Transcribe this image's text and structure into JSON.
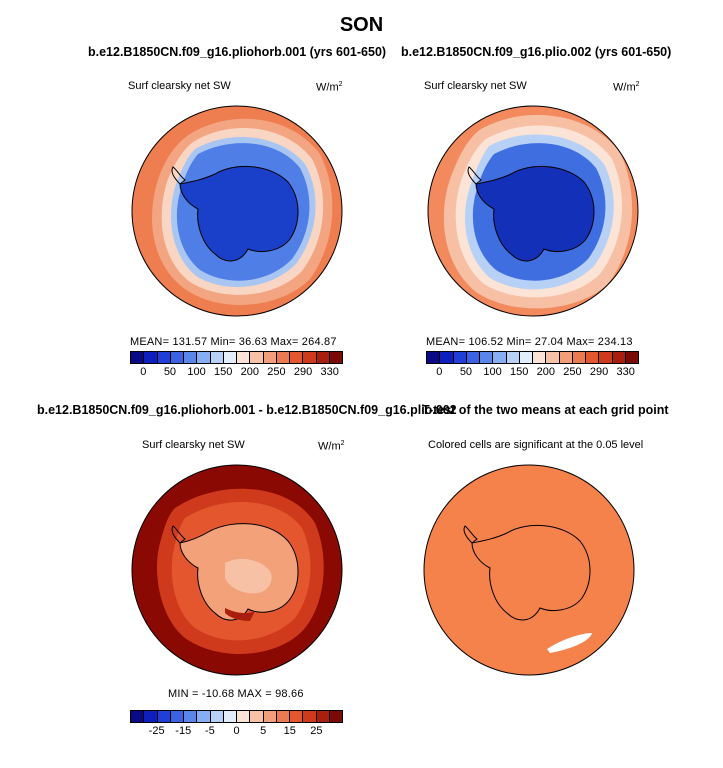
{
  "season": "SON",
  "panels": [
    {
      "title": "b.e12.B1850CN.f09_g16.pliohorb.001 (yrs 601-650)",
      "variable": "Surf clearsky net SW",
      "units": "W/m",
      "units_sup": "2",
      "stats": "MEAN= 131.57   Min=   36.63   Max= 264.87",
      "colorbar": {
        "labels": [
          "0",
          "50",
          "100",
          "150",
          "200",
          "250",
          "290",
          "330"
        ],
        "colors": [
          "#0a0a86",
          "#0d1fbf",
          "#1f3fd6",
          "#3a62e3",
          "#5a86ec",
          "#86aef2",
          "#b6d0f6",
          "#e3eefb",
          "#fbe3d6",
          "#f7c1a6",
          "#f29e78",
          "#ec7a50",
          "#e4572e",
          "#cf3a1c",
          "#aa1e0e",
          "#7a0a04"
        ]
      }
    },
    {
      "title": "b.e12.B1850CN.f09_g16.plio.002 (yrs 601-650)",
      "variable": "Surf clearsky net SW",
      "units": "W/m",
      "units_sup": "2",
      "stats": "MEAN= 106.52   Min=   27.04   Max= 234.13",
      "colorbar": {
        "labels": [
          "0",
          "50",
          "100",
          "150",
          "200",
          "250",
          "290",
          "330"
        ],
        "colors": [
          "#0a0a86",
          "#0d1fbf",
          "#1f3fd6",
          "#3a62e3",
          "#5a86ec",
          "#86aef2",
          "#b6d0f6",
          "#e3eefb",
          "#fbe3d6",
          "#f7c1a6",
          "#f29e78",
          "#ec7a50",
          "#e4572e",
          "#cf3a1c",
          "#aa1e0e",
          "#7a0a04"
        ]
      }
    },
    {
      "title": "b.e12.B1850CN.f09_g16.pliohorb.001 - b.e12.B1850CN.f09_g16.plio.002",
      "variable": "Surf clearsky net SW",
      "units": "W/m",
      "units_sup": "2",
      "stats": "MIN = -10.68  MAX =  98.66",
      "colorbar": {
        "labels": [
          "-25",
          "-15",
          "-5",
          "0",
          "5",
          "15",
          "25"
        ],
        "colors": [
          "#0a0a86",
          "#0d1fbf",
          "#1f3fd6",
          "#3a62e3",
          "#5a86ec",
          "#86aef2",
          "#b6d0f6",
          "#e3eefb",
          "#fbe3d6",
          "#f7c1a6",
          "#f29e78",
          "#ec7a50",
          "#e4572e",
          "#cf3a1c",
          "#aa1e0e",
          "#7a0a04"
        ]
      }
    },
    {
      "title": "T-test of the two means at each grid point",
      "variable": "Colored cells are significant at the 0.05 level"
    }
  ],
  "colors": {
    "land_dark_blue": "#1a3fc8",
    "ocean_light_blue": "#4f7fe6",
    "ocean_orange": "#ef7a4c",
    "diff_dark_red": "#8a0a03",
    "diff_mid_orange": "#f2a178",
    "ttest_orange": "#f5824a"
  }
}
